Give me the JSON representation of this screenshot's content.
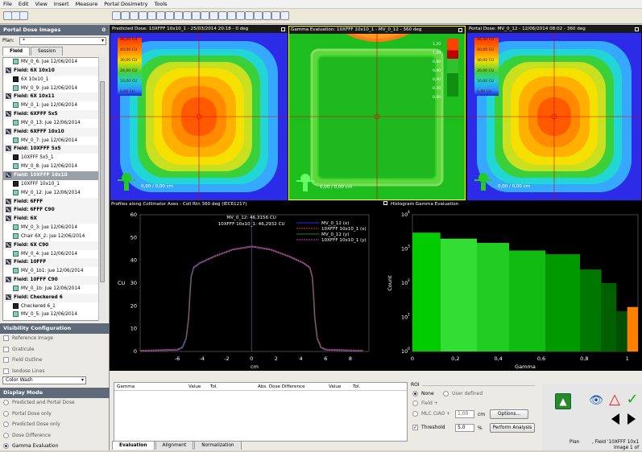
{
  "menu": [
    "File",
    "Edit",
    "View",
    "Insert",
    "Measure",
    "Portal Dosimetry",
    "Tools"
  ],
  "left": {
    "title": "Portal Dose Images",
    "pin": "0",
    "plan_label": "Plan:",
    "plan_value": "*",
    "tabs": [
      "Field",
      "Session"
    ],
    "items": [
      {
        "kind": "img",
        "text": "MV_0_6: jue 12/06/2014"
      },
      {
        "kind": "field",
        "text": "Field: 6X 10x10"
      },
      {
        "kind": "dark",
        "text": "6X 10x10_1"
      },
      {
        "kind": "img",
        "text": "MV_0_9: jue 12/06/2014"
      },
      {
        "kind": "field",
        "text": "Field: 6X 10x11"
      },
      {
        "kind": "img",
        "text": "MV_0_1: jue 12/06/2014"
      },
      {
        "kind": "field",
        "text": "Field: 6XFFF 5x5"
      },
      {
        "kind": "img",
        "text": "MV_0_13: jue 12/06/2014"
      },
      {
        "kind": "field",
        "text": "Field: 6XFFF 10x10"
      },
      {
        "kind": "img",
        "text": "MV_0_7: jue 12/06/2014"
      },
      {
        "kind": "field",
        "text": "Field: 10XFFF 5x5"
      },
      {
        "kind": "dark",
        "text": "10XFFF 5x5_1"
      },
      {
        "kind": "img",
        "text": "MV_0_8: jue 12/06/2014"
      },
      {
        "kind": "sel",
        "text": "Field: 10XFFF 10x10"
      },
      {
        "kind": "dark",
        "text": "10XFFF 10x10_1"
      },
      {
        "kind": "img",
        "text": "MV_0_12: jue 12/06/2014"
      },
      {
        "kind": "field",
        "text": "Field:        6FFF"
      },
      {
        "kind": "field",
        "text": "Field:        6FFF C90"
      },
      {
        "kind": "field",
        "text": "Field:        6X"
      },
      {
        "kind": "img",
        "text": "MV_0_3: jue 12/06/2014"
      },
      {
        "kind": "img",
        "text": "Chair 6X_2: jue 12/06/2014"
      },
      {
        "kind": "field",
        "text": "Field:        6X C90"
      },
      {
        "kind": "img",
        "text": "MV_0_4: jue 12/06/2014"
      },
      {
        "kind": "field",
        "text": "Field:        10FFF"
      },
      {
        "kind": "img",
        "text": "MV_0_1b1: jue 12/06/2014"
      },
      {
        "kind": "field",
        "text": "Field:        10FFF C90"
      },
      {
        "kind": "img",
        "text": "MV_0_1b: jue 12/06/2014"
      },
      {
        "kind": "field",
        "text": "Field: Checkered 6"
      },
      {
        "kind": "dark",
        "text": "Checkered 6_1"
      },
      {
        "kind": "img",
        "text": "MV_0_5: jue 12/06/2014"
      }
    ],
    "vis_title": "Visibility Configuration",
    "vis": [
      "Reference Image",
      "Graticule",
      "Field Outline",
      "Isodose Lines"
    ],
    "color_mode": "Color Wash",
    "disp_title": "Display Mode",
    "modes": [
      "Predicted and Portal Dose",
      "Portal Dose only",
      "Predicted Dose only",
      "Dose Difference",
      "Gamma Evaluation"
    ]
  },
  "images": {
    "p1": {
      "title": "Predicted Dose: 10XFFF 10x10_1 - 25/03/2014 20:18 - 0 deg",
      "labels": [
        "46,00 CU",
        "40,00 CU",
        "30,00 CU",
        "20,00 CU",
        "10,00 CU",
        "0,00 CU"
      ],
      "coord": "0,00 / 0,00 cm"
    },
    "p2": {
      "title": "Gamma Evaluation: 10XFFF 10x10_1 - MV_0_12 - 360 deg",
      "labels": [
        "1,20",
        "1,00",
        "0,80",
        "0,60",
        "0,40",
        "0,20",
        "0,00"
      ],
      "coord": "0,00 / 0,00 cm"
    },
    "p3": {
      "title": "Portal Dose: MV_0_12 - 12/06/2014 08:02 - 360 deg",
      "labels": [
        "46,00 CU",
        "40,00 CU",
        "30,00 CU",
        "20,00 CU",
        "10,00 CU",
        "0,00 CU"
      ],
      "coord": "0,00 / 0,00 cm"
    }
  },
  "profile": {
    "title": "Profiles along Collimator Axes - Coll Rtn 360 deg (IEC61217)",
    "ann1": "MV_0_12: 46,3156 CU",
    "ann2": "10XFFF 10x10_1: 46,2932 CU",
    "xlabel": "cm",
    "ylabel": "CU"
  },
  "histogram": {
    "title": "Histogram Gamma Evaluation",
    "xlabel": "Gamma",
    "ylabel": "Count"
  },
  "bottom": {
    "table_headers": [
      "Gamma",
      "Value",
      "Tol.",
      "Abs. Dose Difference",
      "Value",
      "Tol."
    ],
    "roi_label": "ROI",
    "roi_none": "None",
    "roi_user": "User defined",
    "roi_field": "Field",
    "plus": "+",
    "mlc_label": "MLC CIAO",
    "mlc_value": "1,00",
    "mlc_unit": "cm",
    "options": "Options...",
    "threshold_label": "Threshold",
    "threshold_value": "5,0",
    "threshold_unit": "%",
    "perform": "Perform Analysis",
    "tabs": [
      "Evaluation",
      "Alignment",
      "Normalization"
    ],
    "status_plan": "Plan",
    "status_field": ", Field '10XFFF 10x1",
    "status_image": "Image 1 of"
  },
  "chart_data": [
    {
      "type": "line",
      "title": "Profiles along Collimator Axes - Coll Rtn 360 deg (IEC61217)",
      "xlabel": "cm",
      "ylabel": "CU",
      "xlim": [
        -9,
        9.5
      ],
      "ylim": [
        0,
        60
      ],
      "x_ticks": [
        -6,
        -4,
        -2,
        0,
        2,
        4,
        6,
        8
      ],
      "y_ticks": [
        0,
        10,
        20,
        30,
        40,
        50,
        60
      ],
      "series": [
        {
          "name": "MV_0_12 (x)",
          "color": "#2030ff",
          "x": [
            -9,
            -6,
            -5.6,
            -5.3,
            -5.1,
            -5,
            -4.9,
            -4.7,
            -4.2,
            -3,
            -1.5,
            0,
            1.5,
            3,
            4.2,
            4.7,
            4.9,
            5,
            5.1,
            5.3,
            5.6,
            6,
            9
          ],
          "y": [
            0.5,
            1,
            2,
            6,
            15,
            25,
            33,
            37,
            39,
            42,
            45,
            46.3,
            45,
            42,
            39,
            37,
            33,
            25,
            15,
            6,
            2,
            1,
            0.5
          ]
        },
        {
          "name": "10XFFF 10x10_1 (x)",
          "color": "#e03030",
          "x": [
            -9,
            -6,
            -5.6,
            -5.3,
            -5.1,
            -5,
            -4.9,
            -4.7,
            -4.2,
            -3,
            -1.5,
            0,
            1.5,
            3,
            4.2,
            4.7,
            4.9,
            5,
            5.1,
            5.3,
            5.6,
            6,
            9
          ],
          "y": [
            0.5,
            1,
            2,
            6,
            15,
            25,
            33,
            37,
            39,
            42,
            45,
            46.3,
            45,
            42,
            39,
            37,
            33,
            25,
            15,
            6,
            2,
            1,
            0.5
          ]
        },
        {
          "name": "MV_0_12 (y)",
          "color": "#208020",
          "x": [
            -9,
            -6,
            -5.6,
            -5.3,
            -5.1,
            -5,
            -4.9,
            -4.7,
            -4.2,
            -3,
            -1.5,
            0,
            1.5,
            3,
            4.2,
            4.7,
            4.9,
            5,
            5.1,
            5.3,
            5.6,
            6,
            9
          ],
          "y": [
            0.5,
            1,
            2,
            6,
            15,
            25,
            33,
            37,
            39,
            42,
            45,
            46.3,
            45,
            42,
            39,
            37,
            33,
            25,
            15,
            6,
            2,
            1,
            0.5
          ]
        },
        {
          "name": "10XFFF 10x10_1 (y)",
          "color": "#c040c0",
          "x": [
            -9,
            -6,
            -5.6,
            -5.3,
            -5.1,
            -5,
            -4.9,
            -4.7,
            -4.2,
            -3,
            -1.5,
            0,
            1.5,
            3,
            4.2,
            4.7,
            4.9,
            5,
            5.1,
            5.3,
            5.6,
            6,
            9
          ],
          "y": [
            0.5,
            1,
            2,
            6,
            15,
            25,
            33,
            37,
            39,
            42,
            45,
            46.3,
            45,
            42,
            39,
            37,
            33,
            25,
            15,
            6,
            2,
            1,
            0.5
          ]
        }
      ]
    },
    {
      "type": "bar",
      "title": "Histogram Gamma Evaluation",
      "xlabel": "Gamma",
      "ylabel": "Count",
      "xlim": [
        0,
        1.05
      ],
      "ylog": true,
      "ylim": [
        1,
        10000
      ],
      "x_ticks": [
        "0",
        "0,2",
        "0,4",
        "0,6",
        "0,8",
        "1"
      ],
      "bins": [
        {
          "x0": 0,
          "x1": 0.13,
          "v": 3000,
          "c": "#00cc00"
        },
        {
          "x0": 0.13,
          "x1": 0.3,
          "v": 2000,
          "c": "#33dd33"
        },
        {
          "x0": 0.3,
          "x1": 0.45,
          "v": 1500,
          "c": "#22cc22"
        },
        {
          "x0": 0.45,
          "x1": 0.62,
          "v": 900,
          "c": "#11bb11"
        },
        {
          "x0": 0.62,
          "x1": 0.78,
          "v": 700,
          "c": "#009900"
        },
        {
          "x0": 0.78,
          "x1": 0.88,
          "v": 250,
          "c": "#007700"
        },
        {
          "x0": 0.88,
          "x1": 0.95,
          "v": 100,
          "c": "#006000"
        },
        {
          "x0": 0.95,
          "x1": 1.0,
          "v": 15,
          "c": "#005000"
        },
        {
          "x0": 1.0,
          "x1": 1.05,
          "v": 20,
          "c": "#ff8000"
        }
      ]
    }
  ]
}
